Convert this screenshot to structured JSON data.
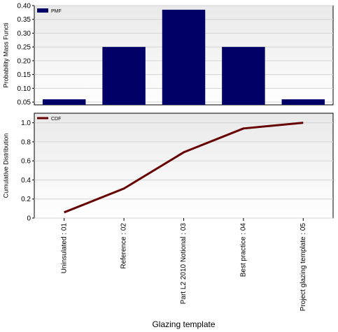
{
  "chart_data": {
    "xlabel": "Glazing template",
    "categories": [
      "Uninsulated : 01",
      "Reference : 02",
      "Part L2 2010 Notional : 03",
      "Best practice : 04",
      "Project glazing template : 05"
    ],
    "charts": [
      {
        "type": "bar",
        "ylabel": "Probability Mass Functi",
        "ylim": [
          0.04,
          0.4
        ],
        "yticks": [
          "0.05",
          "0.10",
          "0.15",
          "0.20",
          "0.25",
          "0.30",
          "0.35",
          "0.40"
        ],
        "grid": true,
        "legend_position": "top-left",
        "series": [
          {
            "name": "PMF",
            "color": "#000066",
            "values": [
              0.06,
              0.25,
              0.385,
              0.25,
              0.06
            ]
          }
        ]
      },
      {
        "type": "line",
        "ylabel": "Cumulative Distribution",
        "ylim": [
          0,
          1.1
        ],
        "yticks": [
          "0",
          "0.2",
          "0.4",
          "0.6",
          "0.8",
          "1.0"
        ],
        "grid": true,
        "legend_position": "top-left",
        "series": [
          {
            "name": "CDF",
            "color": "#660000",
            "values": [
              0.06,
              0.31,
              0.69,
              0.94,
              1.0
            ]
          }
        ]
      }
    ]
  }
}
